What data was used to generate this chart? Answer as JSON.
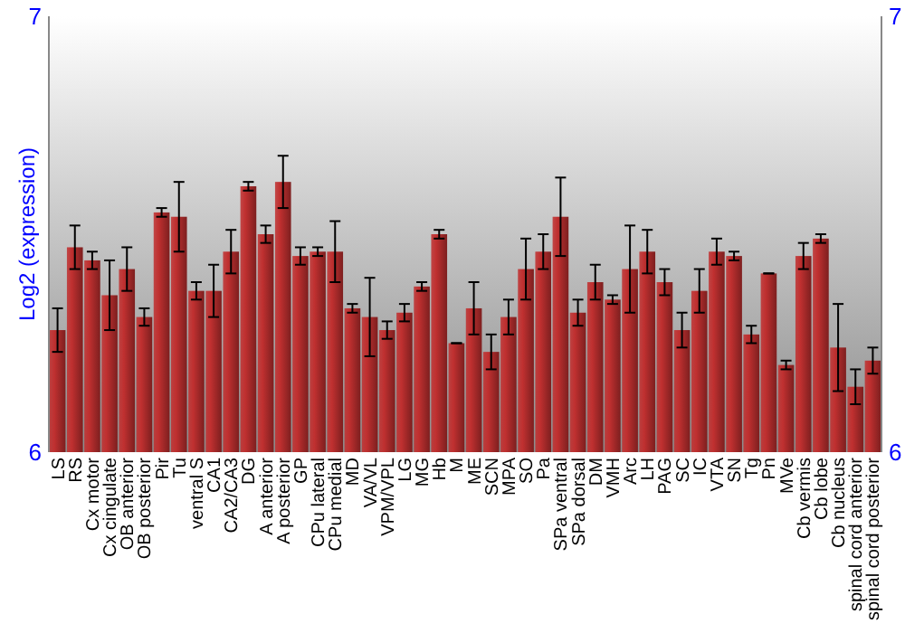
{
  "chart_data": {
    "type": "bar",
    "ylabel": "Log2 (expression)",
    "categories": [
      "LS",
      "RS",
      "Cx motor",
      "Cx cingulate",
      "OB anterior",
      "OB posterior",
      "Pir",
      "Tu",
      "ventral S",
      "CA1",
      "CA2/CA3",
      "DG",
      "A anterior",
      "A posterior",
      "GP",
      "CPu lateral",
      "CPu medial",
      "MD",
      "VA/VL",
      "VPM/VPL",
      "LG",
      "MG",
      "Hb",
      "M",
      "ME",
      "SCN",
      "MPA",
      "SO",
      "Pa",
      "SPa ventral",
      "SPa dorsal",
      "DM",
      "VMH",
      "Arc",
      "LH",
      "PAG",
      "SC",
      "IC",
      "VTA",
      "SN",
      "Tg",
      "Pn",
      "MVe",
      "Cb vermis",
      "Cb lobe",
      "Cb nucleus",
      "spinal cord anterior",
      "spinal cord posterior"
    ],
    "values": [
      6.28,
      6.47,
      6.44,
      6.36,
      6.42,
      6.31,
      6.55,
      6.54,
      6.37,
      6.37,
      6.46,
      6.61,
      6.5,
      6.62,
      6.45,
      6.46,
      6.46,
      6.33,
      6.31,
      6.28,
      6.32,
      6.38,
      6.5,
      6.25,
      6.33,
      6.23,
      6.31,
      6.42,
      6.46,
      6.54,
      6.32,
      6.39,
      6.35,
      6.42,
      6.46,
      6.39,
      6.28,
      6.37,
      6.46,
      6.45,
      6.27,
      6.41,
      6.2,
      6.45,
      6.49,
      6.24,
      6.15,
      6.21
    ],
    "errors": [
      0.05,
      0.05,
      0.02,
      0.08,
      0.05,
      0.02,
      0.01,
      0.08,
      0.02,
      0.06,
      0.05,
      0.01,
      0.02,
      0.06,
      0.02,
      0.01,
      0.07,
      0.01,
      0.09,
      0.02,
      0.02,
      0.01,
      0.01,
      0,
      0.06,
      0.04,
      0.04,
      0.07,
      0.04,
      0.09,
      0.03,
      0.04,
      0.01,
      0.1,
      0.05,
      0.03,
      0.04,
      0.05,
      0.03,
      0.01,
      0.02,
      0,
      0.01,
      0.03,
      0.01,
      0.1,
      0.04,
      0.03
    ],
    "color": "#c03030",
    "ylim": [
      6,
      7
    ],
    "yticks": [
      6,
      7
    ],
    "y2lim": [
      6,
      7
    ],
    "y2ticks": [
      6,
      7
    ],
    "grid": false
  }
}
